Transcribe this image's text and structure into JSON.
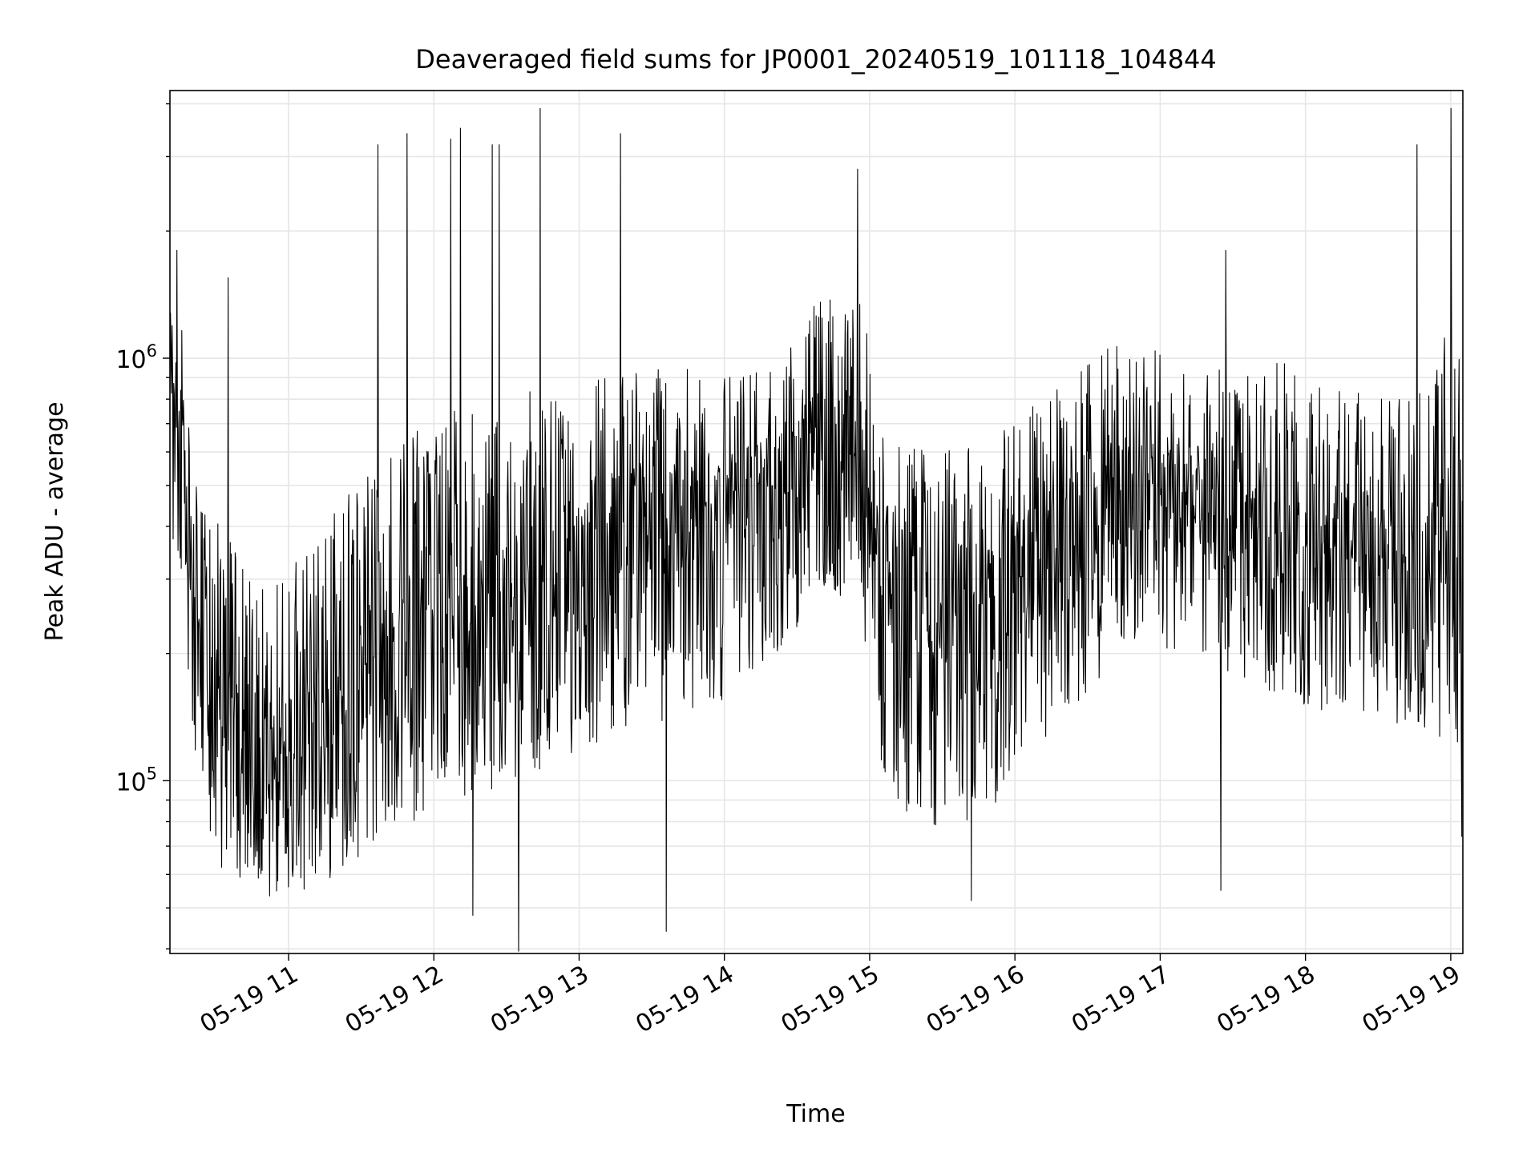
{
  "chart_data": {
    "type": "line",
    "title": "Deaveraged field sums for JP0001_20240519_101118_104844",
    "xlabel": "Time",
    "ylabel": "Peak ADU - average",
    "yscale": "log",
    "xlim": [
      "05-19 10:11",
      "05-19 19:05"
    ],
    "ylim": [
      39000,
      4300000
    ],
    "x_ticks": [
      "05-19 11",
      "05-19 12",
      "05-19 13",
      "05-19 14",
      "05-19 15",
      "05-19 16",
      "05-19 17",
      "05-19 18",
      "05-19 19"
    ],
    "y_major_ticks": [
      {
        "value": 100000,
        "base": "10",
        "exp": "5"
      },
      {
        "value": 1000000,
        "base": "10",
        "exp": "6"
      }
    ],
    "grid": true,
    "line_color": "#000000",
    "grid_color": "#e6e6e6",
    "series": [
      {
        "x": [
          "05-19 10:11",
          "05-19 10:15",
          "05-19 10:20",
          "05-19 10:25",
          "05-19 10:30",
          "05-19 10:35",
          "05-19 10:40",
          "05-19 10:45",
          "05-19 10:50",
          "05-19 10:55",
          "05-19 11:00",
          "05-19 11:10",
          "05-19 11:20",
          "05-19 11:30",
          "05-19 11:40",
          "05-19 11:50",
          "05-19 12:00",
          "05-19 12:15",
          "05-19 12:30",
          "05-19 12:45",
          "05-19 13:00",
          "05-19 13:15",
          "05-19 13:30",
          "05-19 13:45",
          "05-19 14:00",
          "05-19 14:15",
          "05-19 14:30",
          "05-19 14:45",
          "05-19 14:55",
          "05-19 15:05",
          "05-19 15:15",
          "05-19 15:30",
          "05-19 15:45",
          "05-19 16:00",
          "05-19 16:15",
          "05-19 16:30",
          "05-19 16:45",
          "05-19 17:00",
          "05-19 17:15",
          "05-19 17:30",
          "05-19 17:45",
          "05-19 18:00",
          "05-19 18:15",
          "05-19 18:30",
          "05-19 18:45",
          "05-19 18:55",
          "05-19 19:00",
          "05-19 19:03",
          "05-19 19:05"
        ],
        "low": [
          500000,
          450000,
          150000,
          95000,
          90000,
          85000,
          75000,
          70000,
          70000,
          75000,
          75000,
          80000,
          85000,
          95000,
          100000,
          110000,
          120000,
          130000,
          140000,
          150000,
          170000,
          180000,
          190000,
          200000,
          220000,
          250000,
          330000,
          380000,
          380000,
          150000,
          120000,
          110000,
          110000,
          140000,
          170000,
          220000,
          300000,
          290000,
          280000,
          250000,
          230000,
          210000,
          200000,
          200000,
          190000,
          180000,
          170000,
          160000,
          50000
        ],
        "mid": [
          700000,
          750000,
          250000,
          150000,
          140000,
          130000,
          120000,
          115000,
          110000,
          120000,
          120000,
          130000,
          150000,
          170000,
          190000,
          210000,
          230000,
          250000,
          270000,
          300000,
          320000,
          350000,
          380000,
          400000,
          430000,
          470000,
          550000,
          650000,
          650000,
          280000,
          230000,
          210000,
          220000,
          270000,
          320000,
          400000,
          480000,
          460000,
          440000,
          420000,
          400000,
          370000,
          350000,
          330000,
          320000,
          330000,
          350000,
          450000,
          200000
        ],
        "high": [
          850000,
          1000000,
          400000,
          300000,
          280000,
          250000,
          230000,
          200000,
          190000,
          200000,
          220000,
          250000,
          300000,
          350000,
          400000,
          450000,
          500000,
          520000,
          550000,
          580000,
          600000,
          620000,
          650000,
          650000,
          600000,
          620000,
          800000,
          1000000,
          1100000,
          500000,
          420000,
          400000,
          430000,
          500000,
          550000,
          650000,
          750000,
          700000,
          650000,
          620000,
          650000,
          650000,
          600000,
          550000,
          550000,
          700000,
          800000,
          900000,
          400000
        ]
      }
    ],
    "spikes": [
      {
        "x": "05-19 10:14",
        "y": 1800000
      },
      {
        "x": "05-19 10:35",
        "y": 1550000
      },
      {
        "x": "05-19 11:37",
        "y": 3200000
      },
      {
        "x": "05-19 11:49",
        "y": 3400000
      },
      {
        "x": "05-19 12:07",
        "y": 3300000
      },
      {
        "x": "05-19 12:11",
        "y": 3500000
      },
      {
        "x": "05-19 12:24",
        "y": 3200000
      },
      {
        "x": "05-19 12:27",
        "y": 3200000
      },
      {
        "x": "05-19 12:44",
        "y": 3900000
      },
      {
        "x": "05-19 13:17",
        "y": 3400000
      },
      {
        "x": "05-19 14:55",
        "y": 2800000
      },
      {
        "x": "05-19 17:27",
        "y": 1800000
      },
      {
        "x": "05-19 18:46",
        "y": 3200000
      },
      {
        "x": "05-19 19:00",
        "y": 3900000
      }
    ],
    "dips": [
      {
        "x": "05-19 12:35",
        "y": 39500
      },
      {
        "x": "05-19 13:36",
        "y": 44000
      },
      {
        "x": "05-19 12:16",
        "y": 48000
      },
      {
        "x": "05-19 15:42",
        "y": 52000
      },
      {
        "x": "05-19 17:25",
        "y": 55000
      }
    ]
  }
}
